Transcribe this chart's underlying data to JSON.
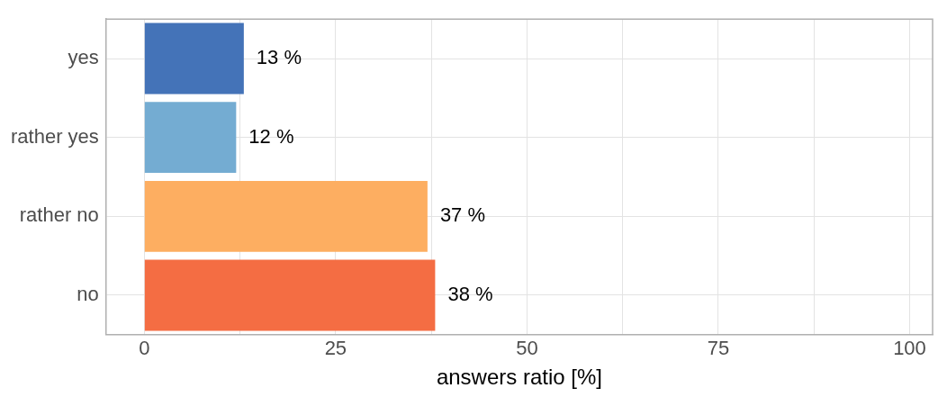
{
  "chart_data": {
    "type": "bar",
    "orientation": "horizontal",
    "xlabel": "answers ratio [%]",
    "categories": [
      "yes",
      "rather yes",
      "rather no",
      "no"
    ],
    "values": [
      13,
      12,
      37,
      38
    ],
    "colors": [
      "#4473b8",
      "#74acd2",
      "#fdae61",
      "#f46d43"
    ],
    "value_labels": [
      "13 %",
      "12 %",
      "37 %",
      "38 %"
    ],
    "xlim": [
      -5,
      103
    ],
    "xticks": [
      0,
      {
        "value": 12.5,
        "label": null
      },
      25,
      {
        "value": 37.5,
        "label": null
      },
      50,
      {
        "value": 62.5,
        "label": null
      },
      75,
      {
        "value": 87.5,
        "label": null
      },
      100
    ],
    "grid": true,
    "legend": false
  }
}
